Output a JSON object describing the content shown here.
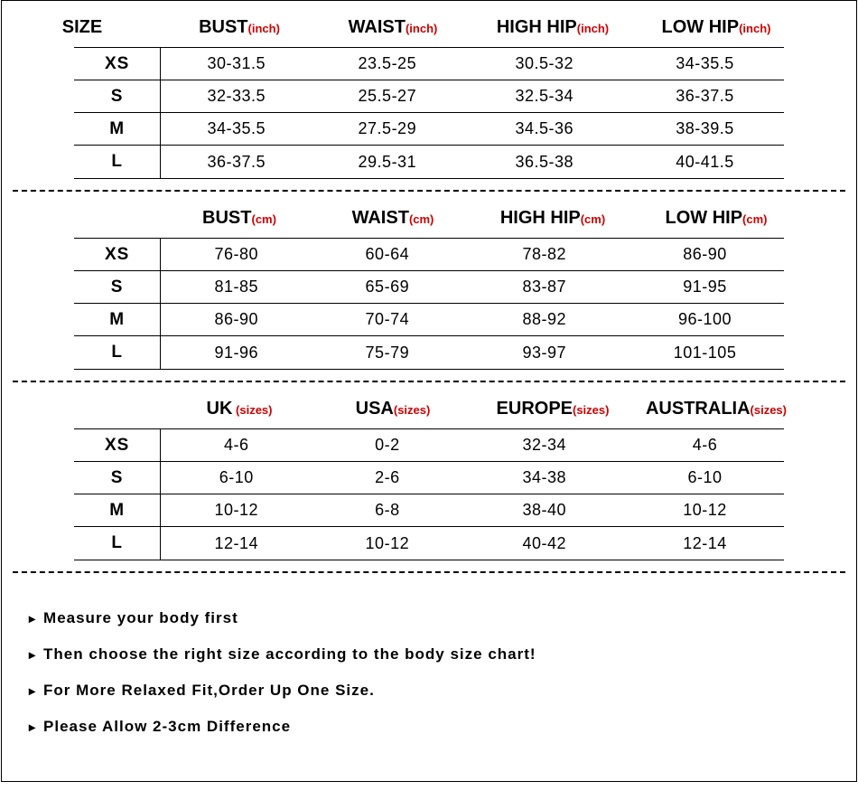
{
  "colors": {
    "background": "#ffffff",
    "text": "#000000",
    "unit_text": "#ce0000",
    "border": "#000000"
  },
  "tables": [
    {
      "show_size_header": true,
      "size_header": "SIZE",
      "headers": [
        {
          "label": "BUST",
          "unit": "(inch)"
        },
        {
          "label": "WAIST",
          "unit": "(inch)"
        },
        {
          "label": "HIGH HIP",
          "unit": "(inch)"
        },
        {
          "label": "LOW HIP",
          "unit": "(inch)"
        }
      ],
      "rows": [
        {
          "size": "XS",
          "vals": [
            "30-31.5",
            "23.5-25",
            "30.5-32",
            "34-35.5"
          ]
        },
        {
          "size": "S",
          "vals": [
            "32-33.5",
            "25.5-27",
            "32.5-34",
            "36-37.5"
          ]
        },
        {
          "size": "M",
          "vals": [
            "34-35.5",
            "27.5-29",
            "34.5-36",
            "38-39.5"
          ]
        },
        {
          "size": "L",
          "vals": [
            "36-37.5",
            "29.5-31",
            "36.5-38",
            "40-41.5"
          ]
        }
      ]
    },
    {
      "show_size_header": false,
      "headers": [
        {
          "label": "BUST",
          "unit": "(cm)"
        },
        {
          "label": "WAIST",
          "unit": "(cm)"
        },
        {
          "label": "HIGH HIP",
          "unit": "(cm)"
        },
        {
          "label": "LOW HIP",
          "unit": "(cm)"
        }
      ],
      "rows": [
        {
          "size": "XS",
          "vals": [
            "76-80",
            "60-64",
            "78-82",
            "86-90"
          ]
        },
        {
          "size": "S",
          "vals": [
            "81-85",
            "65-69",
            "83-87",
            "91-95"
          ]
        },
        {
          "size": "M",
          "vals": [
            "86-90",
            "70-74",
            "88-92",
            "96-100"
          ]
        },
        {
          "size": "L",
          "vals": [
            "91-96",
            "75-79",
            "93-97",
            "101-105"
          ]
        }
      ]
    },
    {
      "show_size_header": false,
      "headers": [
        {
          "label": "UK",
          "unit": " (sizes)"
        },
        {
          "label": "USA",
          "unit": "(sizes)"
        },
        {
          "label": "EUROPE",
          "unit": "(sizes)"
        },
        {
          "label": "AUSTRALIA",
          "unit": "(sizes)"
        }
      ],
      "rows": [
        {
          "size": "XS",
          "vals": [
            "4-6",
            "0-2",
            "32-34",
            "4-6"
          ]
        },
        {
          "size": "S",
          "vals": [
            "6-10",
            "2-6",
            "34-38",
            "6-10"
          ]
        },
        {
          "size": "M",
          "vals": [
            "10-12",
            "6-8",
            "38-40",
            "10-12"
          ]
        },
        {
          "size": "L",
          "vals": [
            "12-14",
            "10-12",
            "40-42",
            "12-14"
          ]
        }
      ]
    }
  ],
  "notes": [
    "Measure your body first",
    "Then choose the right size according to the body size chart!",
    "For More Relaxed Fit,Order Up One Size.",
    "Please Allow 2-3cm Difference"
  ]
}
